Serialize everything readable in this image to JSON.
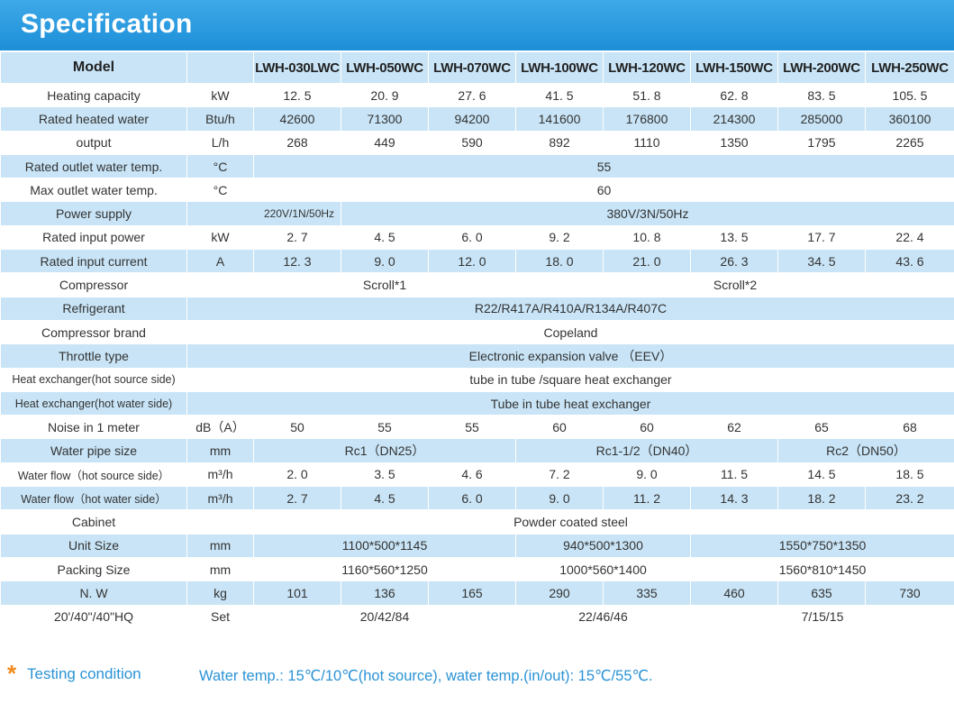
{
  "title": "Specification",
  "header": {
    "model_label": "Model",
    "unit_label": "",
    "models": [
      "LWH-030LWC",
      "LWH-050WC",
      "LWH-070WC",
      "LWH-100WC",
      "LWH-120WC",
      "LWH-150WC",
      "LWH-200WC",
      "LWH-250WC"
    ]
  },
  "rows": {
    "heating_capacity": {
      "label": "Heating capacity",
      "unit": "kW",
      "values": [
        "12. 5",
        "20. 9",
        "27. 6",
        "41. 5",
        "51. 8",
        "62. 8",
        "83. 5",
        "105. 5"
      ]
    },
    "rated_heated_water": {
      "label": "Rated  heated  water",
      "unit": "Btu/h",
      "values": [
        "42600",
        "71300",
        "94200",
        "141600",
        "176800",
        "214300",
        "285000",
        "360100"
      ]
    },
    "output": {
      "label": "output",
      "unit": "L/h",
      "values": [
        "268",
        "449",
        "590",
        "892",
        "1110",
        "1350",
        "1795",
        "2265"
      ]
    },
    "rated_outlet_temp": {
      "label": "Rated  outlet water temp.",
      "unit": "°C",
      "value": "55"
    },
    "max_outlet_temp": {
      "label": "Max  outlet water temp.",
      "unit": "°C",
      "value": "60"
    },
    "power_supply": {
      "label": "Power supply",
      "unit": "",
      "first": "220V/1N/50Hz",
      "rest": "380V/3N/50Hz"
    },
    "rated_input_power": {
      "label": "Rated  input power",
      "unit": "kW",
      "values": [
        "2. 7",
        "4. 5",
        "6. 0",
        "9. 2",
        "10. 8",
        "13. 5",
        "17. 7",
        "22. 4"
      ]
    },
    "rated_input_current": {
      "label": "Rated  input current",
      "unit": "A",
      "values": [
        "12. 3",
        "9. 0",
        "12. 0",
        "18. 0",
        "21. 0",
        "26. 3",
        "34. 5",
        "43. 6"
      ]
    },
    "compressor": {
      "label": "Compressor",
      "unit": "",
      "group1": "Scroll*1",
      "group2": "Scroll*2"
    },
    "refrigerant": {
      "label": "Refrigerant",
      "value": "R22/R417A/R410A/R134A/R407C"
    },
    "compressor_brand": {
      "label": "Compressor  brand",
      "value": "Copeland"
    },
    "throttle_type": {
      "label": "Throttle  type",
      "value": "Electronic  expansion  valve （EEV）"
    },
    "hx_hot_source": {
      "label": "Heat exchanger(hot source  side)",
      "value": "tube in tube /square heat exchanger"
    },
    "hx_hot_water": {
      "label": "Heat exchanger(hot water  side)",
      "value": "Tube  in  tube  heat exchanger"
    },
    "noise": {
      "label": "Noise  in 1  meter",
      "unit": "dB（A）",
      "values": [
        "50",
        "55",
        "55",
        "60",
        "60",
        "62",
        "65",
        "68"
      ]
    },
    "water_pipe": {
      "label": "Water pipe  size",
      "unit": "mm",
      "group1": "Rc1（DN25）",
      "group2": "Rc1-1/2（DN40）",
      "group3": "Rc2（DN50）"
    },
    "flow_hot_source": {
      "label": "Water flow（hot source  side）",
      "unit": "m³/h",
      "values": [
        "2. 0",
        "3. 5",
        "4. 6",
        "7. 2",
        "9. 0",
        "11. 5",
        "14. 5",
        "18. 5"
      ]
    },
    "flow_hot_water": {
      "label": "Water  flow（hot  water  side）",
      "unit": "m³/h",
      "values": [
        "2. 7",
        "4. 5",
        "6. 0",
        "9. 0",
        "11. 2",
        "14. 3",
        "18. 2",
        "23. 2"
      ]
    },
    "cabinet": {
      "label": "Cabinet",
      "value": "Powder coated  steel"
    },
    "unit_size": {
      "label": "Unit Size",
      "unit": "mm",
      "group1": "1100*500*1145",
      "group2": "940*500*1300",
      "group3": "1550*750*1350"
    },
    "packing_size": {
      "label": "Packing  Size",
      "unit": "mm",
      "group1": "1160*560*1250",
      "group2": "1000*560*1400",
      "group3": "1560*810*1450"
    },
    "nw": {
      "label": "N. W",
      "unit": "kg",
      "values": [
        "101",
        "136",
        "165",
        "290",
        "335",
        "460",
        "635",
        "730"
      ]
    },
    "container": {
      "label": "20'/40\"/40\"HQ",
      "unit": "Set",
      "group1": "20/42/84",
      "group2": "22/46/46",
      "group3": "7/15/15"
    }
  },
  "footer": {
    "label": "Testing condition",
    "value": "Water temp.: 15℃/10℃(hot source), water temp.(in/out): 15℃/55℃."
  },
  "colors": {
    "banner": "#1d8fd8",
    "row_blue": "#c8e4f6",
    "accent_text": "#2b93d6",
    "star": "#f08a1d"
  }
}
